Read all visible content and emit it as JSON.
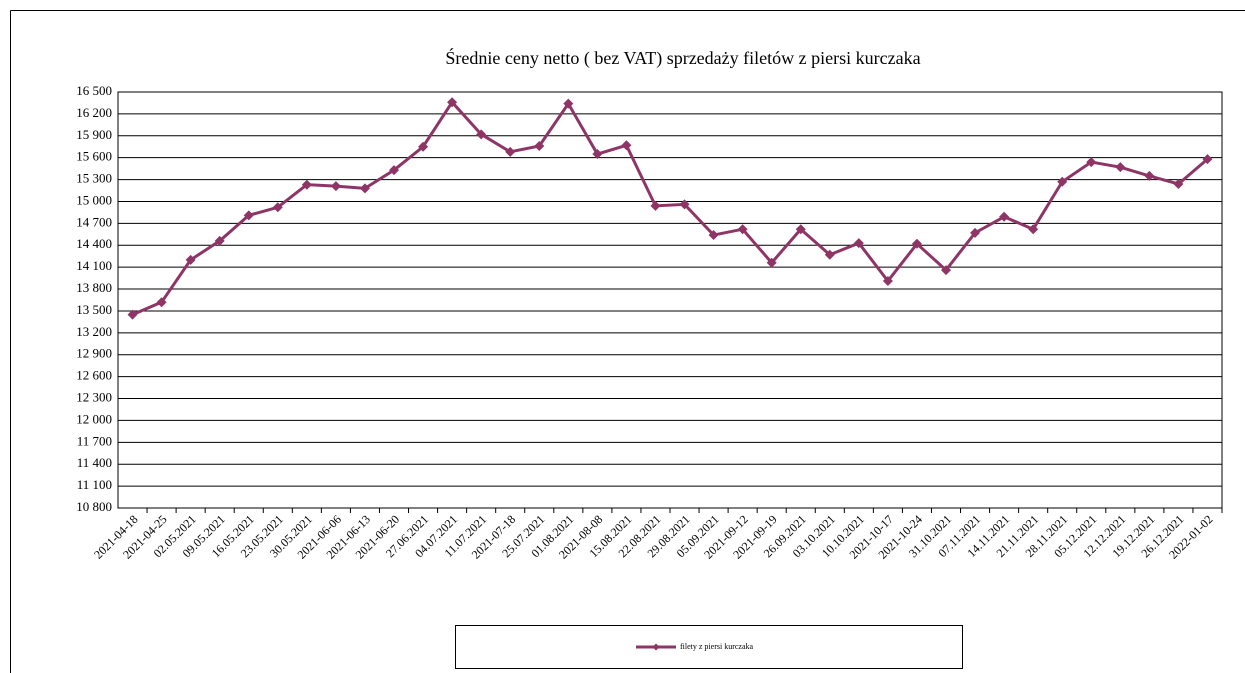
{
  "chart_data": {
    "type": "line",
    "title": "Średnie ceny netto ( bez VAT) sprzedaży filetów z piersi kurczaka",
    "categories": [
      "2021-04-18",
      "2021-04-25",
      "02.05.2021",
      "09.05.2021",
      "16.05.2021",
      "23.05.2021",
      "30.05.2021",
      "2021-06-06",
      "2021-06-13",
      "2021-06-20",
      "27.06.2021",
      "04.07.2021",
      "11.07.2021",
      "2021-07-18",
      "25.07.2021",
      "01.08.2021",
      "2021-08-08",
      "15.08.2021",
      "22.08.2021",
      "29.08.2021",
      "05.09.2021",
      "2021-09-12",
      "2021-09-19",
      "26.09.2021",
      "03.10.2021",
      "10.10.2021",
      "2021-10-17",
      "2021-10-24",
      "31.10.2021",
      "07.11.2021",
      "14.11.2021",
      "21.11.2021",
      "28.11.2021",
      "05.12.2021",
      "12.12.2021",
      "19.12.2021",
      "26.12.2021",
      "2022-01-02"
    ],
    "series": [
      {
        "name": "filety z piersi kurczaka",
        "color": "#8e3566",
        "values": [
          13450,
          13620,
          14200,
          14460,
          14810,
          14920,
          15230,
          15210,
          15180,
          15430,
          15750,
          16360,
          15920,
          15680,
          15760,
          16340,
          15650,
          15770,
          14940,
          14960,
          14540,
          14620,
          14160,
          14620,
          14270,
          14430,
          13910,
          14420,
          14060,
          14570,
          14790,
          14620,
          15270,
          15540,
          15470,
          15350,
          15240,
          15580
        ]
      }
    ],
    "ylim": [
      10800,
      16500
    ],
    "yticks": [
      {
        "value": 10800,
        "label": "10 800"
      },
      {
        "value": 11100,
        "label": "11 100"
      },
      {
        "value": 11400,
        "label": "11 400"
      },
      {
        "value": 11700,
        "label": "11 700"
      },
      {
        "value": 12000,
        "label": "12 000"
      },
      {
        "value": 12300,
        "label": "12 300"
      },
      {
        "value": 12600,
        "label": "12 600"
      },
      {
        "value": 12900,
        "label": "12 900"
      },
      {
        "value": 13200,
        "label": "13 200"
      },
      {
        "value": 13500,
        "label": "13 500"
      },
      {
        "value": 13800,
        "label": "13 800"
      },
      {
        "value": 14100,
        "label": "14 100"
      },
      {
        "value": 14400,
        "label": "14 400"
      },
      {
        "value": 14700,
        "label": "14 700"
      },
      {
        "value": 15000,
        "label": "15 000"
      },
      {
        "value": 15300,
        "label": "15 300"
      },
      {
        "value": 15600,
        "label": "15 600"
      },
      {
        "value": 15900,
        "label": "15 900"
      },
      {
        "value": 16200,
        "label": "16 200"
      },
      {
        "value": 16500,
        "label": "16 500"
      }
    ],
    "grid": true,
    "legend": "bottom"
  }
}
